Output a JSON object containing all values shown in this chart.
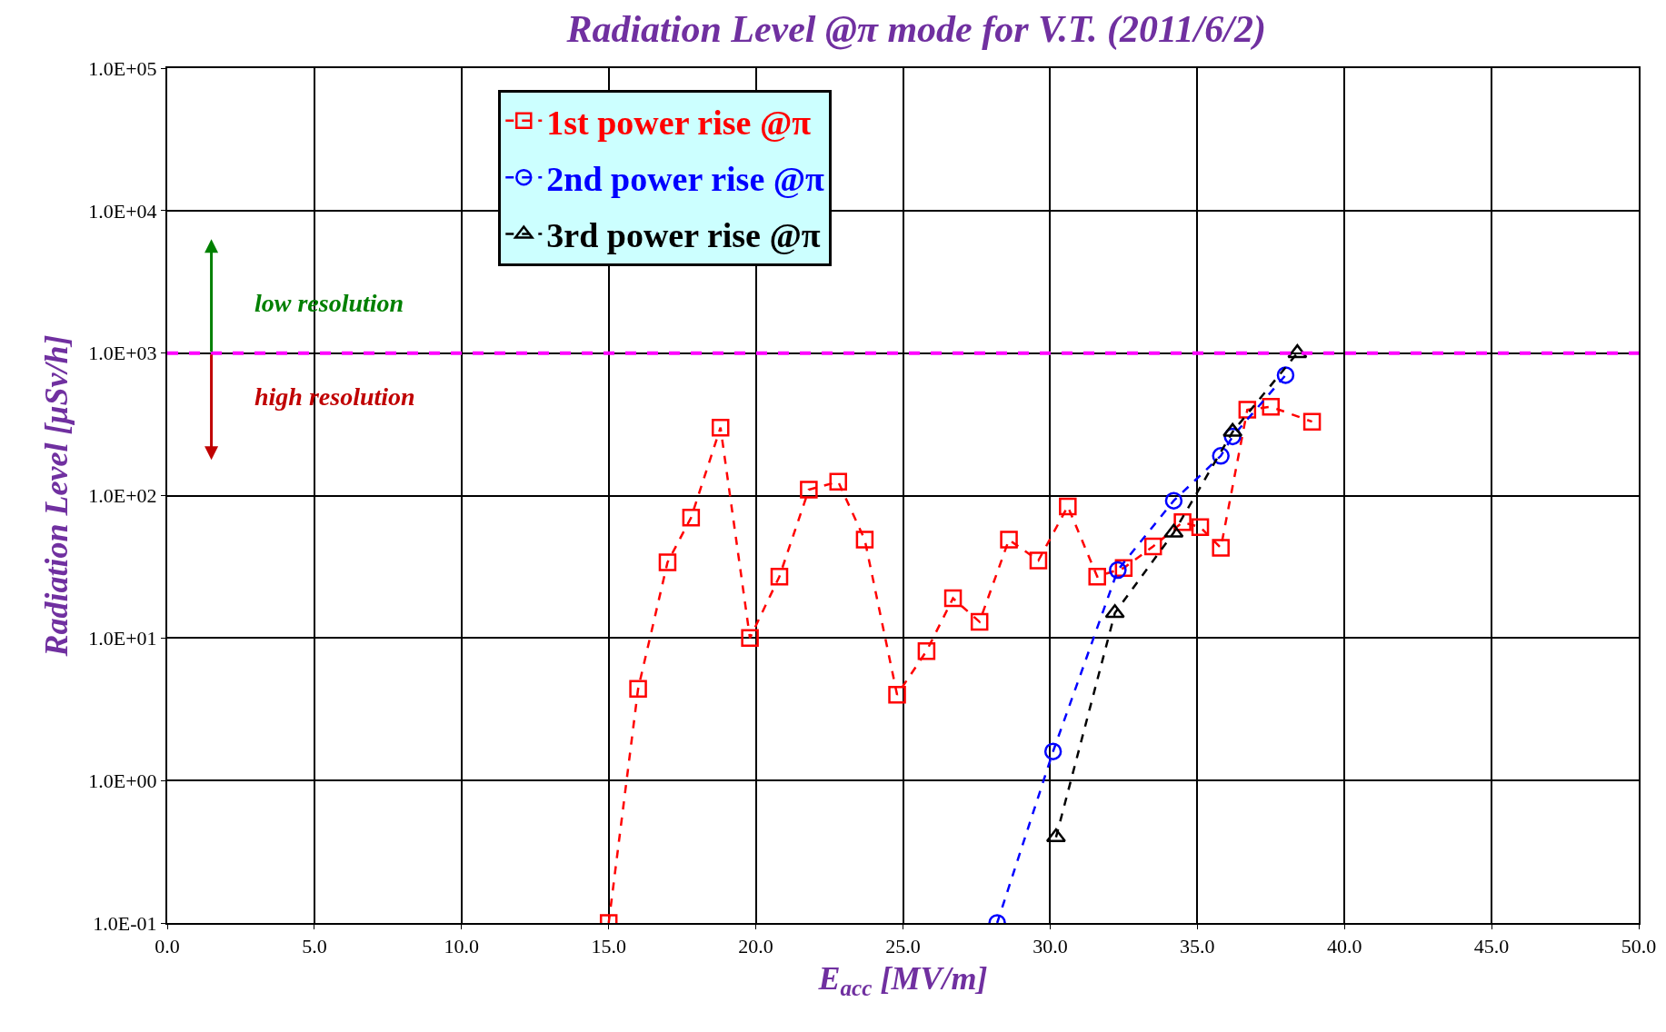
{
  "chart_data": {
    "type": "line",
    "title": "Radiation Level @π mode for V.T. (2011/6/2)",
    "xlabel": "E$_{acc}$ [MV/m]",
    "ylabel": "Radiation Level [μSv/h]",
    "series": [
      {
        "name": "1st power rise @π",
        "color": "#ff0000",
        "marker": "square",
        "x": [
          15.0,
          16.0,
          17.0,
          17.8,
          18.8,
          19.8,
          20.8,
          21.8,
          22.8,
          23.7,
          24.8,
          25.8,
          26.7,
          27.6,
          28.6,
          29.6,
          30.6,
          31.6,
          32.5,
          33.5,
          34.5,
          35.1,
          35.8,
          36.7,
          37.5,
          38.9
        ],
        "values": [
          0.1,
          4.4,
          34,
          70,
          300,
          10,
          27,
          110,
          125,
          49,
          4.0,
          8.1,
          19,
          13,
          49,
          35,
          84,
          27,
          31,
          44,
          65,
          60,
          43,
          400,
          420,
          330
        ]
      },
      {
        "name": "2nd power rise @π",
        "color": "#0000ff",
        "marker": "circle",
        "x": [
          28.2,
          30.1,
          32.3,
          34.2,
          35.8,
          36.2,
          38.0
        ],
        "values": [
          0.1,
          1.6,
          30,
          92,
          190,
          260,
          700
        ]
      },
      {
        "name": "3rd power rise @π",
        "color": "#000000",
        "marker": "triangle",
        "x": [
          30.2,
          32.2,
          34.2,
          36.2,
          38.4
        ],
        "values": [
          0.4,
          15,
          55,
          280,
          1000
        ]
      }
    ],
    "line_style": "dashed",
    "log": "y",
    "grid": true,
    "legend": "top",
    "xlim": [
      0,
      50
    ],
    "xticks": [
      {
        "value": 0,
        "label": "0.0"
      },
      {
        "value": 5,
        "label": "5.0"
      },
      {
        "value": 10,
        "label": "10.0"
      },
      {
        "value": 15,
        "label": "15.0"
      },
      {
        "value": 20,
        "label": "20.0"
      },
      {
        "value": 25,
        "label": "25.0"
      },
      {
        "value": 30,
        "label": "30.0"
      },
      {
        "value": 35,
        "label": "35.0"
      },
      {
        "value": 40,
        "label": "40.0"
      },
      {
        "value": 45,
        "label": "45.0"
      },
      {
        "value": 50,
        "label": "50.0"
      }
    ],
    "ylim": [
      0.1,
      100000
    ],
    "yticks": [
      {
        "value": 0.1,
        "label": "1.0E-01"
      },
      {
        "value": 1,
        "label": "1.0E+00"
      },
      {
        "value": 10,
        "label": "1.0E+01"
      },
      {
        "value": 100,
        "label": "1.0E+02"
      },
      {
        "value": 1000,
        "label": "1.0E+03"
      },
      {
        "value": 10000,
        "label": "1.0E+04"
      },
      {
        "value": 100000,
        "label": "1.0E+05"
      }
    ],
    "ref_lines": [
      {
        "axis": "y",
        "value": 1000,
        "color": "#ff00ff",
        "line_style": "dashed"
      }
    ],
    "annotations": [
      "low resolution",
      "high resolution"
    ]
  }
}
